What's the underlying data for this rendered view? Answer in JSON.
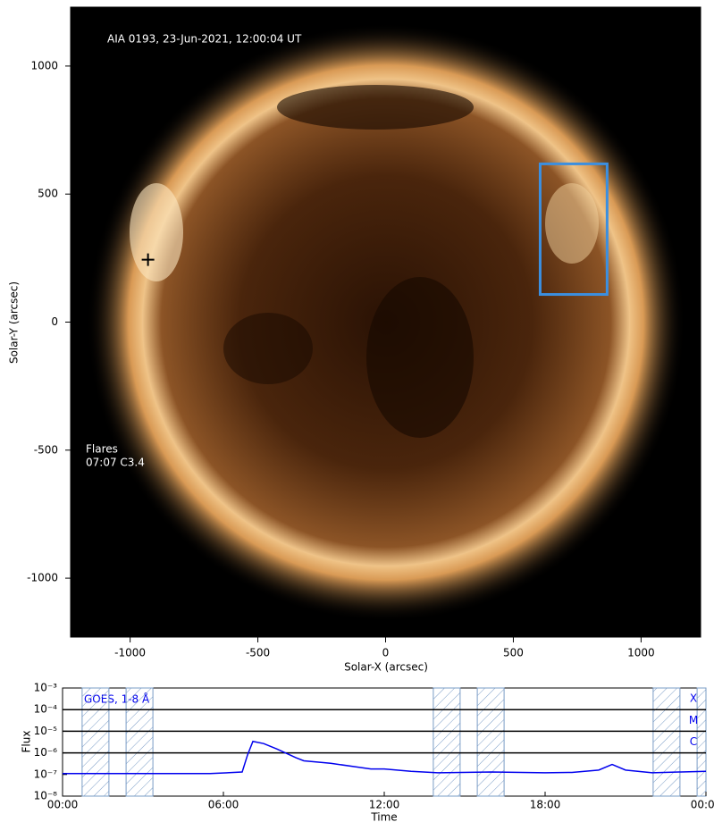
{
  "chart_data": [
    {
      "type": "image",
      "title": "AIA 0193, 23-Jun-2021, 12:00:04 UT",
      "annotations": [
        "Flares",
        "07:07 C3.4"
      ],
      "x_label": "Solar-X (arcsec)",
      "y_label": "Solar-Y (arcsec)",
      "xlim": [
        -1233,
        1233
      ],
      "ylim": [
        -1230,
        1230
      ],
      "xticks": [
        -1000,
        -500,
        0,
        500,
        1000
      ],
      "yticks": [
        -1000,
        -500,
        0,
        500,
        1000
      ],
      "region": {
        "x": [
          605,
          867
        ],
        "y": [
          108,
          618
        ],
        "color": "#3b8fe0"
      },
      "marker": {
        "x": -930,
        "y": 244
      }
    },
    {
      "type": "line",
      "text": "GOES, 1-8 Å",
      "x_label": "Time",
      "y_label": "Flux",
      "log_y": true,
      "xlim": [
        0,
        24
      ],
      "ylim": [
        1e-08,
        0.001
      ],
      "xticks": [
        {
          "value": 0,
          "label": "00:00"
        },
        {
          "value": 6,
          "label": "06:00"
        },
        {
          "value": 12,
          "label": "12:00"
        },
        {
          "value": 18,
          "label": "18:00"
        },
        {
          "value": 24,
          "label": "00:00"
        }
      ],
      "yticks": [
        {
          "value": 1e-08,
          "label": "10⁻⁸"
        },
        {
          "value": 1e-07,
          "label": "10⁻⁷"
        },
        {
          "value": 1e-06,
          "label": "10⁻⁶"
        },
        {
          "value": 1e-05,
          "label": "10⁻⁵"
        },
        {
          "value": 0.0001,
          "label": "10⁻⁴"
        },
        {
          "value": 0.001,
          "label": "10⁻³"
        }
      ],
      "levels": [
        {
          "value": 0.0001,
          "label": "X"
        },
        {
          "value": 1e-05,
          "label": "M"
        },
        {
          "value": 1e-06,
          "label": "C"
        }
      ],
      "shaded": [
        [
          0.73,
          1.73
        ],
        [
          2.37,
          3.37
        ],
        [
          13.83,
          14.83
        ],
        [
          15.47,
          16.47
        ],
        [
          22.03,
          23.03
        ],
        [
          23.67,
          24
        ]
      ],
      "series": [
        {
          "color": "#0000ee",
          "x": [
            0,
            2,
            4,
            5.5,
            6.7,
            6.9,
            7.1,
            7.5,
            8,
            8.7,
            9,
            10,
            11,
            11.5,
            12,
            13,
            14,
            16,
            18,
            19,
            20,
            20.5,
            21,
            22,
            23,
            24
          ],
          "values": [
            1.1e-07,
            1.1e-07,
            1.1e-07,
            1.1e-07,
            1.3e-07,
            8e-07,
            3.4e-06,
            2.7e-06,
            1.5e-06,
            6e-07,
            4.3e-07,
            3.3e-07,
            2.2e-07,
            1.8e-07,
            1.8e-07,
            1.4e-07,
            1.2e-07,
            1.3e-07,
            1.2e-07,
            1.25e-07,
            1.6e-07,
            2.9e-07,
            1.6e-07,
            1.2e-07,
            1.3e-07,
            1.4e-07
          ]
        }
      ]
    }
  ]
}
